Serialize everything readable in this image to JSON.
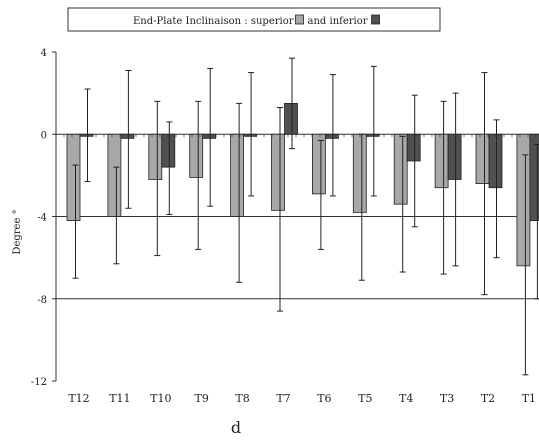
{
  "chart_data": {
    "type": "bar",
    "title": "",
    "legend_prefix": "End-Plate Inclinaison : ",
    "legend_items": [
      {
        "label": "superior",
        "color": "#a8a8a8"
      },
      {
        "label": "and inferior",
        "color": "#505050"
      }
    ],
    "legend_placement": "top",
    "ylabel": "Degree °",
    "xlabel": "",
    "panel_letter": "d",
    "ylim": [
      -12,
      4
    ],
    "yticks": [
      "4",
      "0",
      "-4",
      "-8",
      "-12"
    ],
    "ytick_values": [
      4,
      0,
      -4,
      -8,
      -12
    ],
    "gridlines_at": [
      0,
      -4,
      -8
    ],
    "categories": [
      "T12",
      "T11",
      "T10",
      "T9",
      "T8",
      "T7",
      "T6",
      "T5",
      "T4",
      "T3",
      "T2",
      "T1"
    ],
    "series": [
      {
        "name": "superior",
        "color": "#a8a8a8",
        "values": [
          -4.2,
          -4.0,
          -2.2,
          -2.1,
          -4.0,
          -3.7,
          -2.9,
          -3.8,
          -3.4,
          -2.6,
          -2.4,
          -6.4
        ],
        "error_high": [
          -1.5,
          -1.6,
          1.6,
          1.6,
          1.5,
          1.3,
          -0.3,
          0.0,
          -0.1,
          1.6,
          3.0,
          -1.0
        ],
        "error_low": [
          -7.0,
          -6.3,
          -5.9,
          -5.6,
          -7.2,
          -8.6,
          -5.6,
          -7.1,
          -6.7,
          -6.8,
          -7.8,
          -11.7
        ]
      },
      {
        "name": "and inferior",
        "color": "#505050",
        "values": [
          -0.1,
          -0.2,
          -1.6,
          -0.2,
          -0.1,
          1.5,
          -0.2,
          -0.1,
          -1.3,
          -2.2,
          -2.6,
          -4.2
        ],
        "error_high": [
          2.2,
          3.1,
          0.6,
          3.2,
          3.0,
          3.7,
          2.9,
          3.3,
          1.9,
          2.0,
          0.7,
          -0.5
        ],
        "error_low": [
          -2.3,
          -3.6,
          -3.9,
          -3.5,
          -3.0,
          -0.7,
          -3.0,
          -3.0,
          -4.5,
          -6.4,
          -6.0,
          -8.0
        ]
      }
    ]
  }
}
